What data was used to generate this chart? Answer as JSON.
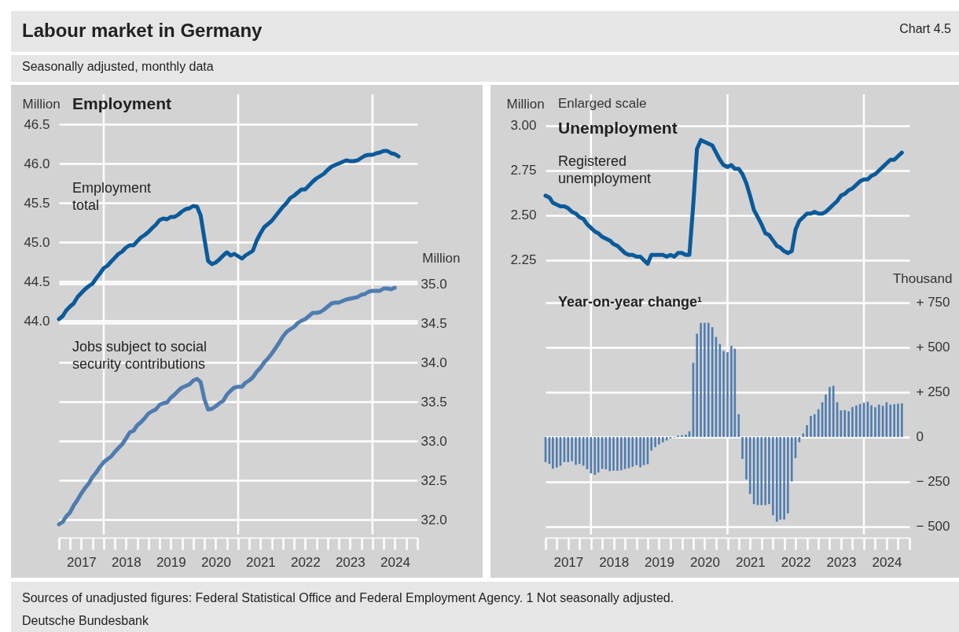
{
  "chart_data": [
    {
      "type": "line",
      "title": "Employment",
      "ylabel": "Million",
      "y2label": "Million",
      "annotations": [
        "Labour market in Germany",
        "Chart 4.5",
        "Seasonally adjusted, monthly data",
        "Sources of unadjusted figures: Federal Statistical Office and Federal Employment Agency. 1 Not seasonally adjusted.",
        "Deutsche Bundesbank"
      ],
      "xlim": [
        "2017-01",
        "2025-01"
      ],
      "xticks": [
        {
          "value": "2017-01",
          "label": null
        },
        {
          "value": "2017-04",
          "label": null
        },
        {
          "value": "2017-07",
          "label": null
        },
        {
          "value": "2017-10",
          "label": null
        },
        {
          "value": "2018-01",
          "label": null
        },
        {
          "value": "2018-04",
          "label": null
        },
        {
          "value": "2018-07",
          "label": null
        },
        {
          "value": "2018-10",
          "label": null
        },
        {
          "value": "2019-01",
          "label": null
        },
        {
          "value": "2019-04",
          "label": null
        },
        {
          "value": "2019-07",
          "label": null
        },
        {
          "value": "2019-10",
          "label": null
        },
        {
          "value": "2020-01",
          "label": null
        },
        {
          "value": "2020-04",
          "label": null
        },
        {
          "value": "2020-07",
          "label": null
        },
        {
          "value": "2020-10",
          "label": null
        },
        {
          "value": "2021-01",
          "label": null
        },
        {
          "value": "2021-04",
          "label": null
        },
        {
          "value": "2021-07",
          "label": null
        },
        {
          "value": "2021-10",
          "label": null
        },
        {
          "value": "2022-01",
          "label": null
        },
        {
          "value": "2022-04",
          "label": null
        },
        {
          "value": "2022-07",
          "label": null
        },
        {
          "value": "2022-10",
          "label": null
        },
        {
          "value": "2023-01",
          "label": null
        },
        {
          "value": "2023-04",
          "label": null
        },
        {
          "value": "2023-07",
          "label": null
        },
        {
          "value": "2023-10",
          "label": null
        },
        {
          "value": "2024-01",
          "label": null
        },
        {
          "value": "2024-04",
          "label": null
        },
        {
          "value": "2024-07",
          "label": null
        },
        {
          "value": "2024-10",
          "label": null
        },
        {
          "value": "2025-01",
          "label": null
        },
        {
          "value": "2017-07-02",
          "label": "2017"
        },
        {
          "value": "2018-07-02",
          "label": "2018"
        },
        {
          "value": "2019-07-02",
          "label": "2019"
        },
        {
          "value": "2020-07-02",
          "label": "2020"
        },
        {
          "value": "2021-07-02",
          "label": "2021"
        },
        {
          "value": "2022-07-02",
          "label": "2022"
        },
        {
          "value": "2023-07-02",
          "label": "2023"
        },
        {
          "value": "2024-07-02",
          "label": "2024"
        }
      ],
      "ylim": [
        41.28,
        46.88
      ],
      "yticks": [
        {
          "value": 44,
          "label": "44.0"
        },
        {
          "value": 44.5,
          "label": "44.5"
        },
        {
          "value": 45,
          "label": "45.0"
        },
        {
          "value": 45.5,
          "label": "45.5"
        },
        {
          "value": 46,
          "label": "46.0"
        },
        {
          "value": 46.5,
          "label": "46.5"
        }
      ],
      "y2lim": [
        31.81,
        37.41
      ],
      "y2ticks": [
        {
          "value": 32,
          "label": "32.0"
        },
        {
          "value": 32.5,
          "label": "32.5"
        },
        {
          "value": 33,
          "label": "33.0"
        },
        {
          "value": 33.5,
          "label": "33.5"
        },
        {
          "value": 34,
          "label": "34.0"
        },
        {
          "value": 34.5,
          "label": "34.5"
        },
        {
          "value": 35,
          "label": "35.0"
        }
      ],
      "grid": "y",
      "ref_lines": [
        {
          "axis": "x",
          "value": "2018-01",
          "color": "#ffffff"
        },
        {
          "axis": "x",
          "value": "2021-01",
          "color": "#ffffff"
        },
        {
          "axis": "x",
          "value": "2024-01",
          "color": "#ffffff"
        }
      ],
      "x": [
        "2017-01",
        "2017-02",
        "2017-03",
        "2017-04",
        "2017-05",
        "2017-06",
        "2017-07",
        "2017-08",
        "2017-09",
        "2017-10",
        "2017-11",
        "2017-12",
        "2018-01",
        "2018-02",
        "2018-03",
        "2018-04",
        "2018-05",
        "2018-06",
        "2018-07",
        "2018-08",
        "2018-09",
        "2018-10",
        "2018-11",
        "2018-12",
        "2019-01",
        "2019-02",
        "2019-03",
        "2019-04",
        "2019-05",
        "2019-06",
        "2019-07",
        "2019-08",
        "2019-09",
        "2019-10",
        "2019-11",
        "2019-12",
        "2020-01",
        "2020-02",
        "2020-03",
        "2020-04",
        "2020-05",
        "2020-06",
        "2020-07",
        "2020-08",
        "2020-09",
        "2020-10",
        "2020-11",
        "2020-12",
        "2021-01",
        "2021-02",
        "2021-03",
        "2021-04",
        "2021-05",
        "2021-06",
        "2021-07",
        "2021-08",
        "2021-09",
        "2021-10",
        "2021-11",
        "2021-12",
        "2022-01",
        "2022-02",
        "2022-03",
        "2022-04",
        "2022-05",
        "2022-06",
        "2022-07",
        "2022-08",
        "2022-09",
        "2022-10",
        "2022-11",
        "2022-12",
        "2023-01",
        "2023-02",
        "2023-03",
        "2023-04",
        "2023-05",
        "2023-06",
        "2023-07",
        "2023-08",
        "2023-09",
        "2023-10",
        "2023-11",
        "2023-12",
        "2024-01",
        "2024-02",
        "2024-03",
        "2024-04",
        "2024-05",
        "2024-06",
        "2024-07",
        "2024-08"
      ],
      "series": [
        {
          "name": "Employment total",
          "color": "#0b5a9a",
          "values": [
            44.02,
            44.06,
            44.13,
            44.18,
            44.22,
            44.3,
            44.35,
            44.4,
            44.44,
            44.47,
            44.54,
            44.6,
            44.67,
            44.7,
            44.75,
            44.8,
            44.85,
            44.88,
            44.93,
            44.96,
            44.96,
            45.01,
            45.06,
            45.09,
            45.13,
            45.18,
            45.22,
            45.28,
            45.3,
            45.29,
            45.32,
            45.32,
            45.35,
            45.39,
            45.42,
            45.43,
            45.46,
            45.45,
            45.34,
            45.04,
            44.76,
            44.72,
            44.74,
            44.78,
            44.83,
            44.87,
            44.83,
            44.85,
            44.82,
            44.79,
            44.83,
            44.86,
            44.89,
            45.02,
            45.11,
            45.19,
            45.23,
            45.27,
            45.33,
            45.39,
            45.45,
            45.5,
            45.56,
            45.59,
            45.63,
            45.67,
            45.67,
            45.72,
            45.77,
            45.81,
            45.84,
            45.87,
            45.92,
            45.96,
            45.98,
            46.0,
            46.02,
            46.04,
            46.03,
            46.03,
            46.04,
            46.07,
            46.1,
            46.11,
            46.11,
            46.13,
            46.14,
            46.16,
            46.16,
            46.13,
            46.12,
            46.09
          ]
        },
        {
          "name": "Jobs subject to social security contributions",
          "color": "#4f7cb0",
          "axis": "y2",
          "values": [
            31.94,
            31.97,
            32.04,
            32.09,
            32.18,
            32.25,
            32.33,
            32.4,
            32.46,
            32.54,
            32.6,
            32.67,
            32.73,
            32.77,
            32.8,
            32.86,
            32.91,
            32.96,
            33.03,
            33.11,
            33.13,
            33.2,
            33.24,
            33.29,
            33.35,
            33.38,
            33.4,
            33.46,
            33.48,
            33.49,
            33.55,
            33.59,
            33.64,
            33.68,
            33.7,
            33.72,
            33.77,
            33.79,
            33.75,
            33.53,
            33.4,
            33.41,
            33.44,
            33.48,
            33.51,
            33.59,
            33.64,
            33.68,
            33.69,
            33.69,
            33.74,
            33.77,
            33.81,
            33.88,
            33.93,
            34.0,
            34.05,
            34.11,
            34.18,
            34.25,
            34.33,
            34.39,
            34.42,
            34.45,
            34.5,
            34.53,
            34.55,
            34.59,
            34.63,
            34.63,
            34.64,
            34.67,
            34.71,
            34.75,
            34.76,
            34.76,
            34.78,
            34.8,
            34.81,
            34.82,
            34.83,
            34.86,
            34.87,
            34.9,
            34.91,
            34.91,
            34.91,
            34.94,
            34.94,
            34.93,
            34.95,
            null
          ]
        }
      ]
    },
    {
      "type": "line",
      "title": "Unemployment",
      "ylabel": "Million",
      "y2label": "Thousand",
      "annotations": [
        "Enlarged scale"
      ],
      "xlim": [
        "2017-01",
        "2025-01"
      ],
      "xticks": [
        {
          "value": "2017-01",
          "label": null
        },
        {
          "value": "2017-04",
          "label": null
        },
        {
          "value": "2017-07",
          "label": null
        },
        {
          "value": "2017-10",
          "label": null
        },
        {
          "value": "2018-01",
          "label": null
        },
        {
          "value": "2018-04",
          "label": null
        },
        {
          "value": "2018-07",
          "label": null
        },
        {
          "value": "2018-10",
          "label": null
        },
        {
          "value": "2019-01",
          "label": null
        },
        {
          "value": "2019-04",
          "label": null
        },
        {
          "value": "2019-07",
          "label": null
        },
        {
          "value": "2019-10",
          "label": null
        },
        {
          "value": "2020-01",
          "label": null
        },
        {
          "value": "2020-04",
          "label": null
        },
        {
          "value": "2020-07",
          "label": null
        },
        {
          "value": "2020-10",
          "label": null
        },
        {
          "value": "2021-01",
          "label": null
        },
        {
          "value": "2021-04",
          "label": null
        },
        {
          "value": "2021-07",
          "label": null
        },
        {
          "value": "2021-10",
          "label": null
        },
        {
          "value": "2022-01",
          "label": null
        },
        {
          "value": "2022-04",
          "label": null
        },
        {
          "value": "2022-07",
          "label": null
        },
        {
          "value": "2022-10",
          "label": null
        },
        {
          "value": "2023-01",
          "label": null
        },
        {
          "value": "2023-04",
          "label": null
        },
        {
          "value": "2023-07",
          "label": null
        },
        {
          "value": "2023-10",
          "label": null
        },
        {
          "value": "2024-01",
          "label": null
        },
        {
          "value": "2024-04",
          "label": null
        },
        {
          "value": "2024-07",
          "label": null
        },
        {
          "value": "2024-10",
          "label": null
        },
        {
          "value": "2025-01",
          "label": null
        },
        {
          "value": "2017-07-02",
          "label": "2017"
        },
        {
          "value": "2018-07-02",
          "label": "2018"
        },
        {
          "value": "2019-07-02",
          "label": "2019"
        },
        {
          "value": "2020-07-02",
          "label": "2020"
        },
        {
          "value": "2021-07-02",
          "label": "2021"
        },
        {
          "value": "2022-07-02",
          "label": "2022"
        },
        {
          "value": "2023-07-02",
          "label": "2023"
        },
        {
          "value": "2024-07-02",
          "label": "2024"
        }
      ],
      "ylim": [
        0.72,
        3.175
      ],
      "yticks": [
        2.25,
        {
          "value": 2.5,
          "label": "2.50"
        },
        2.75,
        {
          "value": 3,
          "label": "3.00"
        }
      ],
      "y2lim": [
        -544,
        1912
      ],
      "y2ticks": [
        {
          "value": -500,
          "label": "− 500"
        },
        {
          "value": -250,
          "label": "− 250"
        },
        0,
        {
          "value": 250,
          "label": "+ 250"
        },
        {
          "value": 500,
          "label": "+ 500"
        },
        {
          "value": 750,
          "label": "+ 750"
        }
      ],
      "grid": "y",
      "ref_lines": [
        {
          "axis": "x",
          "value": "2018-01",
          "color": "#ffffff"
        },
        {
          "axis": "x",
          "value": "2021-01",
          "color": "#ffffff"
        },
        {
          "axis": "x",
          "value": "2024-01",
          "color": "#ffffff"
        }
      ],
      "x": [
        "2017-01",
        "2017-02",
        "2017-03",
        "2017-04",
        "2017-05",
        "2017-06",
        "2017-07",
        "2017-08",
        "2017-09",
        "2017-10",
        "2017-11",
        "2017-12",
        "2018-01",
        "2018-02",
        "2018-03",
        "2018-04",
        "2018-05",
        "2018-06",
        "2018-07",
        "2018-08",
        "2018-09",
        "2018-10",
        "2018-11",
        "2018-12",
        "2019-01",
        "2019-02",
        "2019-03",
        "2019-04",
        "2019-05",
        "2019-06",
        "2019-07",
        "2019-08",
        "2019-09",
        "2019-10",
        "2019-11",
        "2019-12",
        "2020-01",
        "2020-02",
        "2020-03",
        "2020-04",
        "2020-05",
        "2020-06",
        "2020-07",
        "2020-08",
        "2020-09",
        "2020-10",
        "2020-11",
        "2020-12",
        "2021-01",
        "2021-02",
        "2021-03",
        "2021-04",
        "2021-05",
        "2021-06",
        "2021-07",
        "2021-08",
        "2021-09",
        "2021-10",
        "2021-11",
        "2021-12",
        "2022-01",
        "2022-02",
        "2022-03",
        "2022-04",
        "2022-05",
        "2022-06",
        "2022-07",
        "2022-08",
        "2022-09",
        "2022-10",
        "2022-11",
        "2022-12",
        "2023-01",
        "2023-02",
        "2023-03",
        "2023-04",
        "2023-05",
        "2023-06",
        "2023-07",
        "2023-08",
        "2023-09",
        "2023-10",
        "2023-11",
        "2023-12",
        "2024-01",
        "2024-02",
        "2024-03",
        "2024-04",
        "2024-05",
        "2024-06",
        "2024-07",
        "2024-08",
        "2024-09",
        "2024-10",
        "2024-11"
      ],
      "series": [
        {
          "name": "Registered unemployment",
          "color": "#0b5a9a",
          "values": [
            2.61,
            2.6,
            2.57,
            2.56,
            2.55,
            2.55,
            2.54,
            2.52,
            2.51,
            2.49,
            2.48,
            2.45,
            2.43,
            2.41,
            2.4,
            2.38,
            2.37,
            2.36,
            2.34,
            2.33,
            2.31,
            2.29,
            2.28,
            2.28,
            2.27,
            2.27,
            2.25,
            2.23,
            2.28,
            2.28,
            2.28,
            2.28,
            2.27,
            2.28,
            2.27,
            2.29,
            2.29,
            2.28,
            2.28,
            2.56,
            2.87,
            2.92,
            2.91,
            2.9,
            2.89,
            2.85,
            2.81,
            2.78,
            2.77,
            2.78,
            2.76,
            2.76,
            2.73,
            2.68,
            2.61,
            2.53,
            2.49,
            2.45,
            2.4,
            2.39,
            2.36,
            2.33,
            2.32,
            2.3,
            2.29,
            2.3,
            2.42,
            2.47,
            2.49,
            2.51,
            2.51,
            2.52,
            2.51,
            2.51,
            2.52,
            2.54,
            2.56,
            2.58,
            2.61,
            2.62,
            2.64,
            2.65,
            2.67,
            2.69,
            2.7,
            2.7,
            2.72,
            2.73,
            2.75,
            2.77,
            2.79,
            2.81,
            2.81,
            2.83,
            2.85
          ]
        },
        {
          "name": "Year-on-year change¹",
          "type": "bar",
          "axis": "y2",
          "color": "#4f7cb0",
          "values": [
            -140,
            -150,
            -177,
            -170,
            -160,
            -140,
            -140,
            -135,
            -155,
            -150,
            -160,
            -180,
            -203,
            -211,
            -198,
            -178,
            -180,
            -190,
            -188,
            -188,
            -186,
            -178,
            -174,
            -166,
            -157,
            -169,
            -157,
            -152,
            -76,
            -56,
            -42,
            -29,
            -19,
            -8,
            -3,
            8,
            10,
            13,
            32,
            414,
            576,
            637,
            637,
            637,
            613,
            558,
            519,
            480,
            473,
            509,
            493,
            127,
            -122,
            -237,
            -318,
            -374,
            -380,
            -380,
            -380,
            -374,
            -436,
            -473,
            -461,
            -460,
            -426,
            -248,
            -118,
            -29,
            20,
            66,
            118,
            127,
            155,
            194,
            237,
            279,
            286,
            194,
            149,
            150,
            144,
            167,
            176,
            184,
            191,
            196,
            177,
            166,
            181,
            174,
            194,
            181,
            183,
            186,
            188
          ]
        }
      ]
    }
  ]
}
